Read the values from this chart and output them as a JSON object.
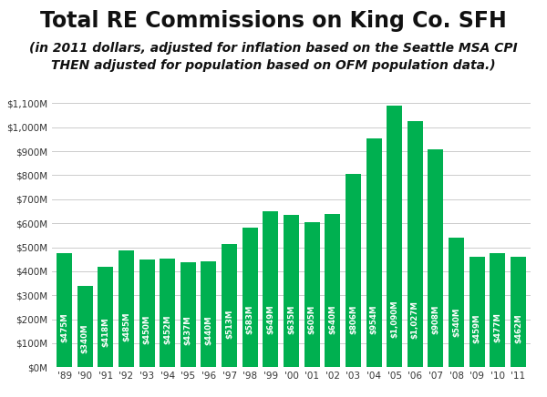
{
  "title": "Total RE Commissions on King Co. SFH",
  "subtitle": "(in 2011 dollars, adjusted for inflation based on the Seattle MSA CPI\nTHEN adjusted for population based on OFM population data.)",
  "years": [
    "'89",
    "'90",
    "'91",
    "'92",
    "'93",
    "'94",
    "'95",
    "'96",
    "'97",
    "'98",
    "'99",
    "'00",
    "'01",
    "'02",
    "'03",
    "'04",
    "'05",
    "'06",
    "'07",
    "'08",
    "'09",
    "'10",
    "'11"
  ],
  "values": [
    475,
    340,
    418,
    485,
    450,
    452,
    437,
    440,
    513,
    583,
    649,
    635,
    605,
    640,
    806,
    954,
    1090,
    1027,
    908,
    540,
    459,
    477,
    462
  ],
  "labels": [
    "$475M",
    "$340M",
    "$418M",
    "$485M",
    "$450M",
    "$452M",
    "$437M",
    "$440M",
    "$513M",
    "$583M",
    "$649M",
    "$635M",
    "$605M",
    "$640M",
    "$806M",
    "$954M",
    "$1,090M",
    "$1,027M",
    "$908M",
    "$540M",
    "$459M",
    "$477M",
    "$462M"
  ],
  "bar_color": "#00B050",
  "background_color": "#ffffff",
  "ylim": [
    0,
    1100
  ],
  "ytick_labels": [
    "$0M",
    "$100M",
    "$200M",
    "$300M",
    "$400M",
    "$500M",
    "$600M",
    "$700M",
    "$800M",
    "$900M",
    "$1,000M",
    "$1,100M"
  ],
  "ytick_values": [
    0,
    100,
    200,
    300,
    400,
    500,
    600,
    700,
    800,
    900,
    1000,
    1100
  ],
  "title_fontsize": 17,
  "subtitle_fontsize": 10,
  "label_fontsize": 6.2,
  "label_color": "#ffffff",
  "grid_color": "#cccccc",
  "axis_label_color": "#333333",
  "tick_fontsize": 7.5
}
